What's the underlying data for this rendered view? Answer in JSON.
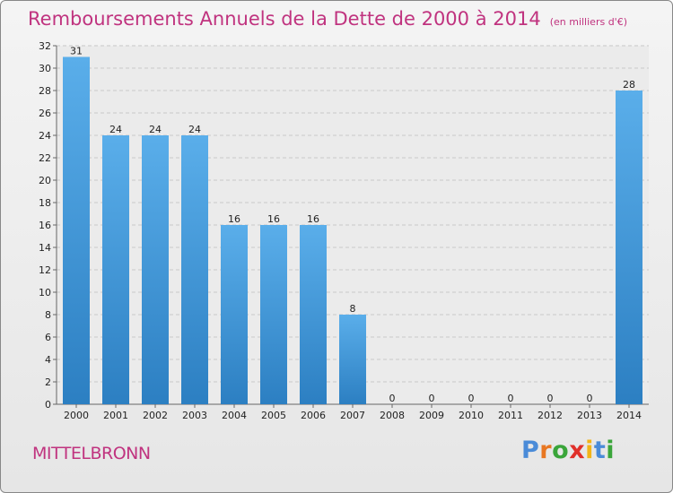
{
  "chart_data": {
    "type": "bar",
    "title": "Remboursements Annuels de la Dette de 2000 à 2014",
    "unit": "(en milliers d'€)",
    "categories": [
      "2000",
      "2001",
      "2002",
      "2003",
      "2004",
      "2005",
      "2006",
      "2007",
      "2008",
      "2009",
      "2010",
      "2011",
      "2012",
      "2013",
      "2014"
    ],
    "values": [
      31,
      24,
      24,
      24,
      16,
      16,
      16,
      8,
      0,
      0,
      0,
      0,
      0,
      0,
      28
    ],
    "ylim": [
      0,
      32
    ],
    "yticks": [
      0,
      2,
      4,
      6,
      8,
      10,
      12,
      14,
      16,
      18,
      20,
      22,
      24,
      26,
      28,
      30,
      32
    ],
    "grid": "horizontal dashed",
    "bar_color_top": "#5aaeea",
    "bar_color_bottom": "#2c7fc2"
  },
  "footer": {
    "commune": "MITTELBRONN",
    "brand": "Proxiti"
  },
  "colors": {
    "title": "#c0337f",
    "brand_letters": [
      "#4a8bd8",
      "#e87722",
      "#3aa53a",
      "#e0302a",
      "#f2b418",
      "#4a8bd8",
      "#3aa53a"
    ]
  }
}
